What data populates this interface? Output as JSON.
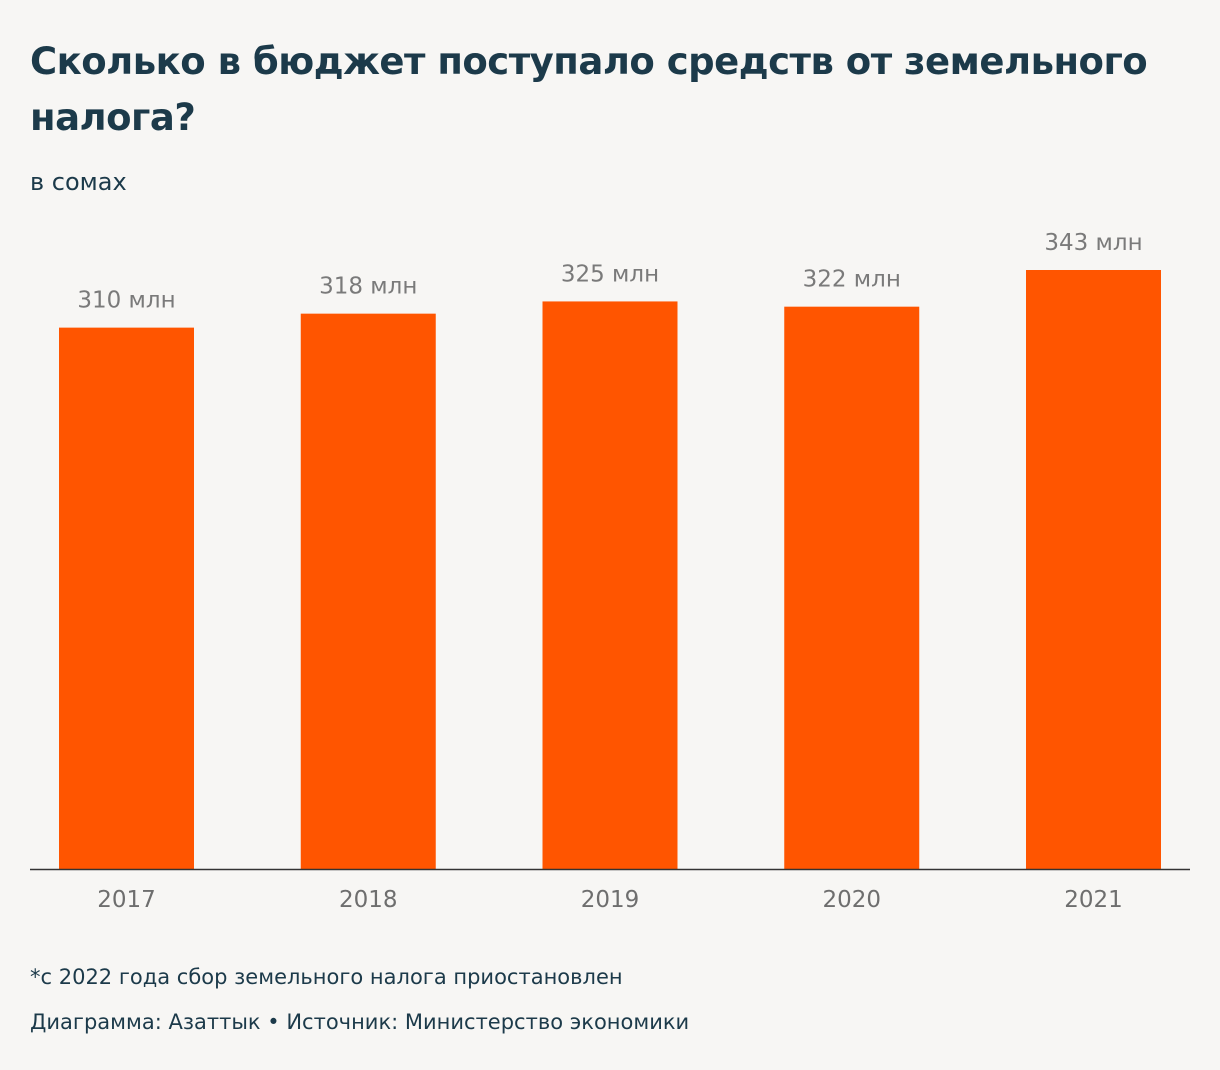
{
  "chart_data": {
    "type": "bar",
    "title": "Сколько в бюджет поступало средств от земельного налога?",
    "subtitle": "в сомах",
    "categories": [
      "2017",
      "2018",
      "2019",
      "2020",
      "2021"
    ],
    "values": [
      310,
      318,
      325,
      322,
      343
    ],
    "value_labels": [
      "310 млн",
      "318 млн",
      "325 млн",
      "322 млн",
      "343 млн"
    ],
    "unit": "млн",
    "ylim": [
      0,
      343
    ],
    "grid": false,
    "bar_color": "#ff5500",
    "axis_color": "#333333"
  },
  "footnote": "*с 2022 года сбор земельного налога приостановлен",
  "credit": "Диаграмма: Азаттык • Источник: Министерство экономики"
}
